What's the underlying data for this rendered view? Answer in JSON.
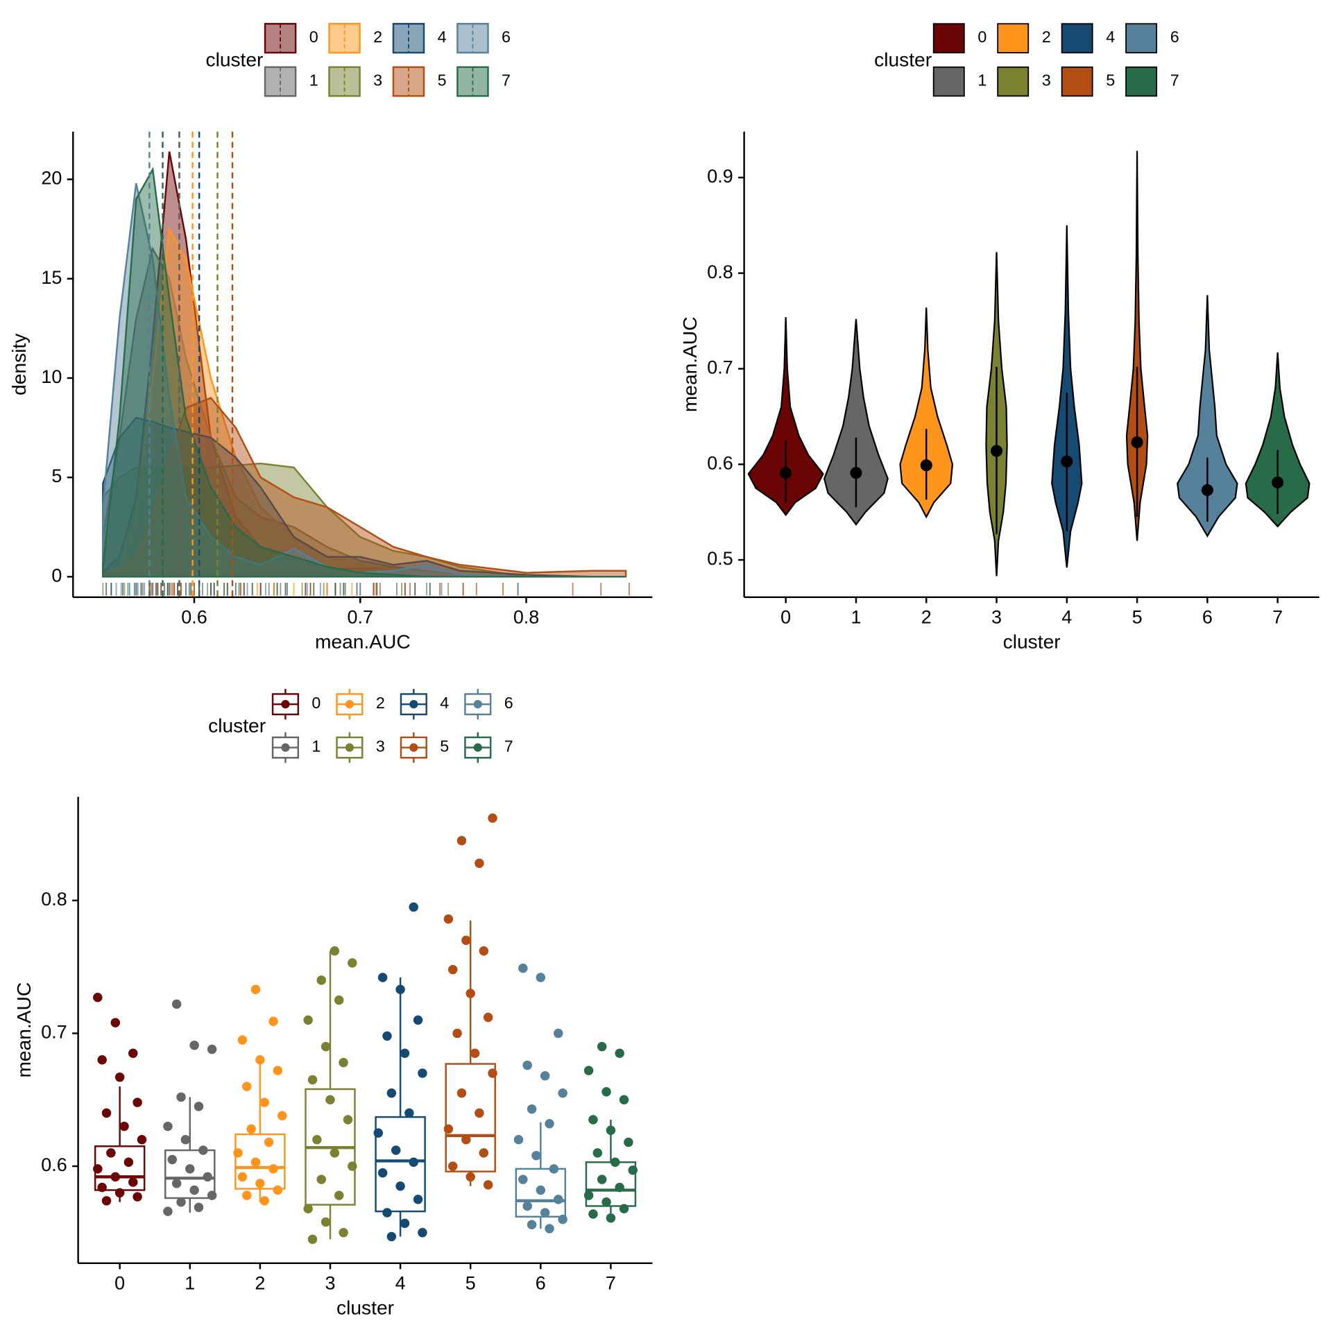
{
  "chart_data": [
    {
      "type": "density",
      "xlabel": "mean.AUC",
      "ylabel": "density",
      "legend_title": "cluster",
      "xlim": [
        0.527,
        0.876
      ],
      "xticks": [
        0.6,
        0.7,
        0.8
      ],
      "ylim": [
        -1.03,
        22.4
      ],
      "yticks": [
        0,
        5,
        10,
        15,
        20
      ],
      "x": [
        0.545,
        0.555,
        0.565,
        0.575,
        0.585,
        0.595,
        0.61,
        0.625,
        0.64,
        0.66,
        0.68,
        0.7,
        0.72,
        0.74,
        0.76,
        0.8,
        0.84,
        0.86
      ],
      "series": [
        {
          "name": "0",
          "color": "#6b0505",
          "mean": 0.591,
          "values": [
            0.2,
            1.0,
            4,
            12,
            21.4,
            17,
            7,
            3,
            1.5,
            0.8,
            0.4,
            0.4,
            0.5,
            0.2,
            0.05,
            0,
            0,
            0
          ]
        },
        {
          "name": "1",
          "color": "#666666",
          "mean": 0.591,
          "values": [
            2,
            7,
            13,
            16.5,
            15,
            11,
            7,
            4,
            3,
            2.5,
            1.5,
            0.8,
            0.5,
            0.3,
            0.1,
            0,
            0,
            0
          ]
        },
        {
          "name": "2",
          "color": "#ff951d",
          "mean": 0.599,
          "values": [
            0.1,
            0.5,
            3,
            10,
            17.5,
            16,
            10,
            6,
            3.5,
            2,
            1,
            0.6,
            0.4,
            0.2,
            0.05,
            0,
            0,
            0
          ]
        },
        {
          "name": "3",
          "color": "#7a8232",
          "mean": 0.614,
          "values": [
            4,
            5,
            5.5,
            5.5,
            5.5,
            5.5,
            5.5,
            5.6,
            5.7,
            5.5,
            3.5,
            2,
            1.3,
            1,
            0.5,
            0,
            0,
            0
          ]
        },
        {
          "name": "4",
          "color": "#154a72",
          "mean": 0.603,
          "values": [
            4.7,
            7,
            8,
            7.8,
            7.5,
            7.3,
            7,
            6,
            4.5,
            2,
            1,
            1,
            0.6,
            0.8,
            0.3,
            0.1,
            0,
            0
          ]
        },
        {
          "name": "5",
          "color": "#b24e14",
          "mean": 0.623,
          "values": [
            0.1,
            0.3,
            1,
            3,
            6,
            8.5,
            9,
            7.5,
            5,
            4,
            3.5,
            2.5,
            1.5,
            1,
            0.6,
            0.2,
            0.3,
            0.3
          ]
        },
        {
          "name": "6",
          "color": "#56819a",
          "mean": 0.573,
          "values": [
            3.5,
            13,
            19.8,
            16,
            9,
            4,
            2,
            1,
            0.6,
            1.4,
            0.5,
            0.2,
            0.3,
            0.6,
            0.1,
            0,
            0,
            0
          ]
        },
        {
          "name": "7",
          "color": "#276b48",
          "mean": 0.581,
          "values": [
            0.5,
            8,
            19,
            20.5,
            14,
            8,
            4.5,
            2.5,
            1.5,
            1,
            0.5,
            0.2,
            0.1,
            0,
            0,
            0,
            0,
            0
          ]
        }
      ]
    },
    {
      "type": "violin",
      "xlabel": "cluster",
      "ylabel": "mean.AUC",
      "legend_title": "cluster",
      "categories": [
        "0",
        "1",
        "2",
        "3",
        "4",
        "5",
        "6",
        "7"
      ],
      "ylim": [
        0.461,
        0.948
      ],
      "yticks": [
        0.5,
        0.6,
        0.7,
        0.8,
        0.9
      ],
      "series": [
        {
          "name": "0",
          "color": "#6b0505",
          "mean": 0.591,
          "lower": 0.56,
          "upper": 0.625,
          "violin_y": [
            0.547,
            0.56,
            0.575,
            0.59,
            0.61,
            0.63,
            0.66,
            0.7,
            0.754
          ],
          "violin_width": [
            0,
            0.25,
            0.8,
            1.0,
            0.6,
            0.35,
            0.12,
            0.04,
            0
          ]
        },
        {
          "name": "1",
          "color": "#666666",
          "mean": 0.591,
          "lower": 0.555,
          "upper": 0.628,
          "violin_y": [
            0.537,
            0.55,
            0.57,
            0.585,
            0.61,
            0.64,
            0.67,
            0.7,
            0.752
          ],
          "violin_width": [
            0,
            0.25,
            0.75,
            0.85,
            0.6,
            0.35,
            0.2,
            0.1,
            0
          ]
        },
        {
          "name": "2",
          "color": "#ff951d",
          "mean": 0.599,
          "lower": 0.563,
          "upper": 0.637,
          "violin_y": [
            0.545,
            0.56,
            0.58,
            0.6,
            0.62,
            0.65,
            0.68,
            0.72,
            0.764
          ],
          "violin_width": [
            0,
            0.2,
            0.65,
            0.7,
            0.55,
            0.3,
            0.12,
            0.04,
            0
          ]
        },
        {
          "name": "3",
          "color": "#7a8232",
          "mean": 0.614,
          "lower": 0.527,
          "upper": 0.702,
          "violin_y": [
            0.483,
            0.52,
            0.55,
            0.58,
            0.62,
            0.66,
            0.7,
            0.75,
            0.822
          ],
          "violin_width": [
            0,
            0.05,
            0.18,
            0.25,
            0.28,
            0.26,
            0.14,
            0.05,
            0
          ]
        },
        {
          "name": "4",
          "color": "#154a72",
          "mean": 0.603,
          "lower": 0.53,
          "upper": 0.675,
          "violin_y": [
            0.492,
            0.53,
            0.56,
            0.58,
            0.62,
            0.66,
            0.7,
            0.76,
            0.85
          ],
          "violin_width": [
            0,
            0.1,
            0.3,
            0.4,
            0.33,
            0.2,
            0.1,
            0.04,
            0
          ]
        },
        {
          "name": "5",
          "color": "#b24e14",
          "mean": 0.623,
          "lower": 0.545,
          "upper": 0.702,
          "violin_y": [
            0.52,
            0.56,
            0.6,
            0.63,
            0.66,
            0.7,
            0.75,
            0.82,
            0.928
          ],
          "violin_width": [
            0,
            0.08,
            0.25,
            0.28,
            0.2,
            0.1,
            0.05,
            0.02,
            0
          ]
        },
        {
          "name": "6",
          "color": "#56819a",
          "mean": 0.573,
          "lower": 0.54,
          "upper": 0.607,
          "violin_y": [
            0.525,
            0.545,
            0.565,
            0.58,
            0.6,
            0.63,
            0.66,
            0.72,
            0.777
          ],
          "violin_width": [
            0,
            0.3,
            0.75,
            0.8,
            0.5,
            0.25,
            0.2,
            0.05,
            0
          ]
        },
        {
          "name": "7",
          "color": "#276b48",
          "mean": 0.581,
          "lower": 0.548,
          "upper": 0.615,
          "violin_y": [
            0.535,
            0.55,
            0.565,
            0.58,
            0.6,
            0.62,
            0.65,
            0.68,
            0.717
          ],
          "violin_width": [
            0,
            0.35,
            0.8,
            0.85,
            0.6,
            0.4,
            0.18,
            0.06,
            0
          ]
        }
      ]
    },
    {
      "type": "box",
      "xlabel": "cluster",
      "ylabel": "mean.AUC",
      "legend_title": "cluster",
      "categories": [
        "0",
        "1",
        "2",
        "3",
        "4",
        "5",
        "6",
        "7"
      ],
      "ylim": [
        0.527,
        0.878
      ],
      "yticks": [
        0.6,
        0.7,
        0.8
      ],
      "series": [
        {
          "name": "0",
          "color": "#6b0505",
          "whisker_low": 0.573,
          "q1": 0.582,
          "median": 0.592,
          "q3": 0.615,
          "whisker_high": 0.66,
          "points": [
            0.727,
            0.708,
            0.685,
            0.68,
            0.667,
            0.648,
            0.64,
            0.63,
            0.62,
            0.61,
            0.603,
            0.598,
            0.592,
            0.588,
            0.584,
            0.58,
            0.577,
            0.574
          ]
        },
        {
          "name": "1",
          "color": "#666666",
          "whisker_low": 0.565,
          "q1": 0.576,
          "median": 0.591,
          "q3": 0.612,
          "whisker_high": 0.652,
          "points": [
            0.722,
            0.691,
            0.688,
            0.652,
            0.645,
            0.63,
            0.62,
            0.612,
            0.605,
            0.598,
            0.592,
            0.587,
            0.582,
            0.578,
            0.573,
            0.569,
            0.566
          ]
        },
        {
          "name": "2",
          "color": "#ff951d",
          "whisker_low": 0.573,
          "q1": 0.583,
          "median": 0.599,
          "q3": 0.624,
          "whisker_high": 0.68,
          "points": [
            0.733,
            0.709,
            0.695,
            0.68,
            0.672,
            0.66,
            0.648,
            0.638,
            0.628,
            0.618,
            0.61,
            0.603,
            0.598,
            0.592,
            0.587,
            0.582,
            0.578,
            0.574
          ]
        },
        {
          "name": "3",
          "color": "#7a8232",
          "whisker_low": 0.545,
          "q1": 0.571,
          "median": 0.614,
          "q3": 0.658,
          "whisker_high": 0.762,
          "points": [
            0.762,
            0.753,
            0.74,
            0.725,
            0.71,
            0.69,
            0.678,
            0.665,
            0.65,
            0.635,
            0.62,
            0.61,
            0.6,
            0.59,
            0.578,
            0.568,
            0.558,
            0.55,
            0.545
          ]
        },
        {
          "name": "4",
          "color": "#154a72",
          "whisker_low": 0.547,
          "q1": 0.566,
          "median": 0.604,
          "q3": 0.637,
          "whisker_high": 0.742,
          "points": [
            0.795,
            0.742,
            0.733,
            0.71,
            0.698,
            0.685,
            0.67,
            0.655,
            0.64,
            0.625,
            0.612,
            0.603,
            0.595,
            0.585,
            0.575,
            0.565,
            0.557,
            0.55,
            0.547
          ]
        },
        {
          "name": "5",
          "color": "#b24e14",
          "whisker_low": 0.585,
          "q1": 0.596,
          "median": 0.623,
          "q3": 0.677,
          "whisker_high": 0.785,
          "points": [
            0.862,
            0.845,
            0.828,
            0.786,
            0.77,
            0.762,
            0.748,
            0.73,
            0.712,
            0.7,
            0.685,
            0.67,
            0.655,
            0.64,
            0.628,
            0.62,
            0.61,
            0.6,
            0.592,
            0.586
          ]
        },
        {
          "name": "6",
          "color": "#56819a",
          "whisker_low": 0.553,
          "q1": 0.562,
          "median": 0.574,
          "q3": 0.598,
          "whisker_high": 0.633,
          "points": [
            0.749,
            0.742,
            0.7,
            0.676,
            0.668,
            0.655,
            0.643,
            0.632,
            0.62,
            0.608,
            0.598,
            0.59,
            0.582,
            0.575,
            0.57,
            0.565,
            0.56,
            0.556,
            0.553
          ]
        },
        {
          "name": "7",
          "color": "#276b48",
          "whisker_low": 0.561,
          "q1": 0.57,
          "median": 0.582,
          "q3": 0.603,
          "whisker_high": 0.635,
          "points": [
            0.69,
            0.685,
            0.672,
            0.656,
            0.65,
            0.635,
            0.627,
            0.618,
            0.61,
            0.603,
            0.597,
            0.59,
            0.584,
            0.578,
            0.573,
            0.568,
            0.564,
            0.561
          ]
        }
      ]
    }
  ]
}
